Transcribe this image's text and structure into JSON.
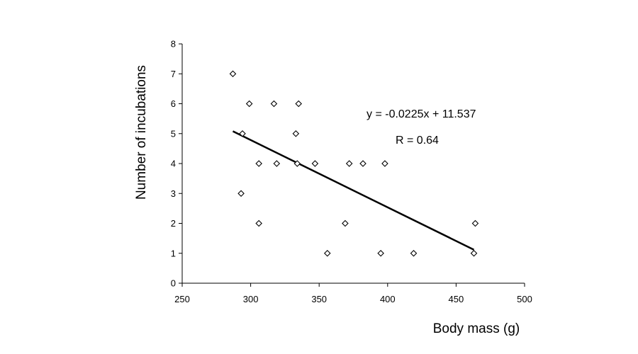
{
  "chart_data": {
    "type": "scatter",
    "xlabel": "Body mass (g)",
    "ylabel": "Number of incubations",
    "xlim": [
      250,
      500
    ],
    "ylim": [
      0,
      8
    ],
    "xticks": [
      250,
      300,
      350,
      400,
      450,
      500
    ],
    "yticks": [
      0,
      1,
      2,
      3,
      4,
      5,
      6,
      7,
      8
    ],
    "grid": false,
    "marker": "diamond",
    "x": [
      287,
      293,
      294,
      299,
      306,
      306,
      317,
      319,
      333,
      334,
      335,
      347,
      356,
      369,
      372,
      382,
      395,
      398,
      419,
      463,
      464
    ],
    "y": [
      7,
      3,
      5,
      6,
      4,
      2,
      6,
      4,
      5,
      4,
      6,
      4,
      1,
      2,
      4,
      4,
      1,
      4,
      1,
      1,
      2
    ],
    "trendline": {
      "type": "linear",
      "slope": -0.0225,
      "intercept": 11.537,
      "x_range": [
        287,
        463
      ]
    },
    "annotations": [
      "y = -0.0225x + 11.537",
      "R = 0.64"
    ]
  }
}
